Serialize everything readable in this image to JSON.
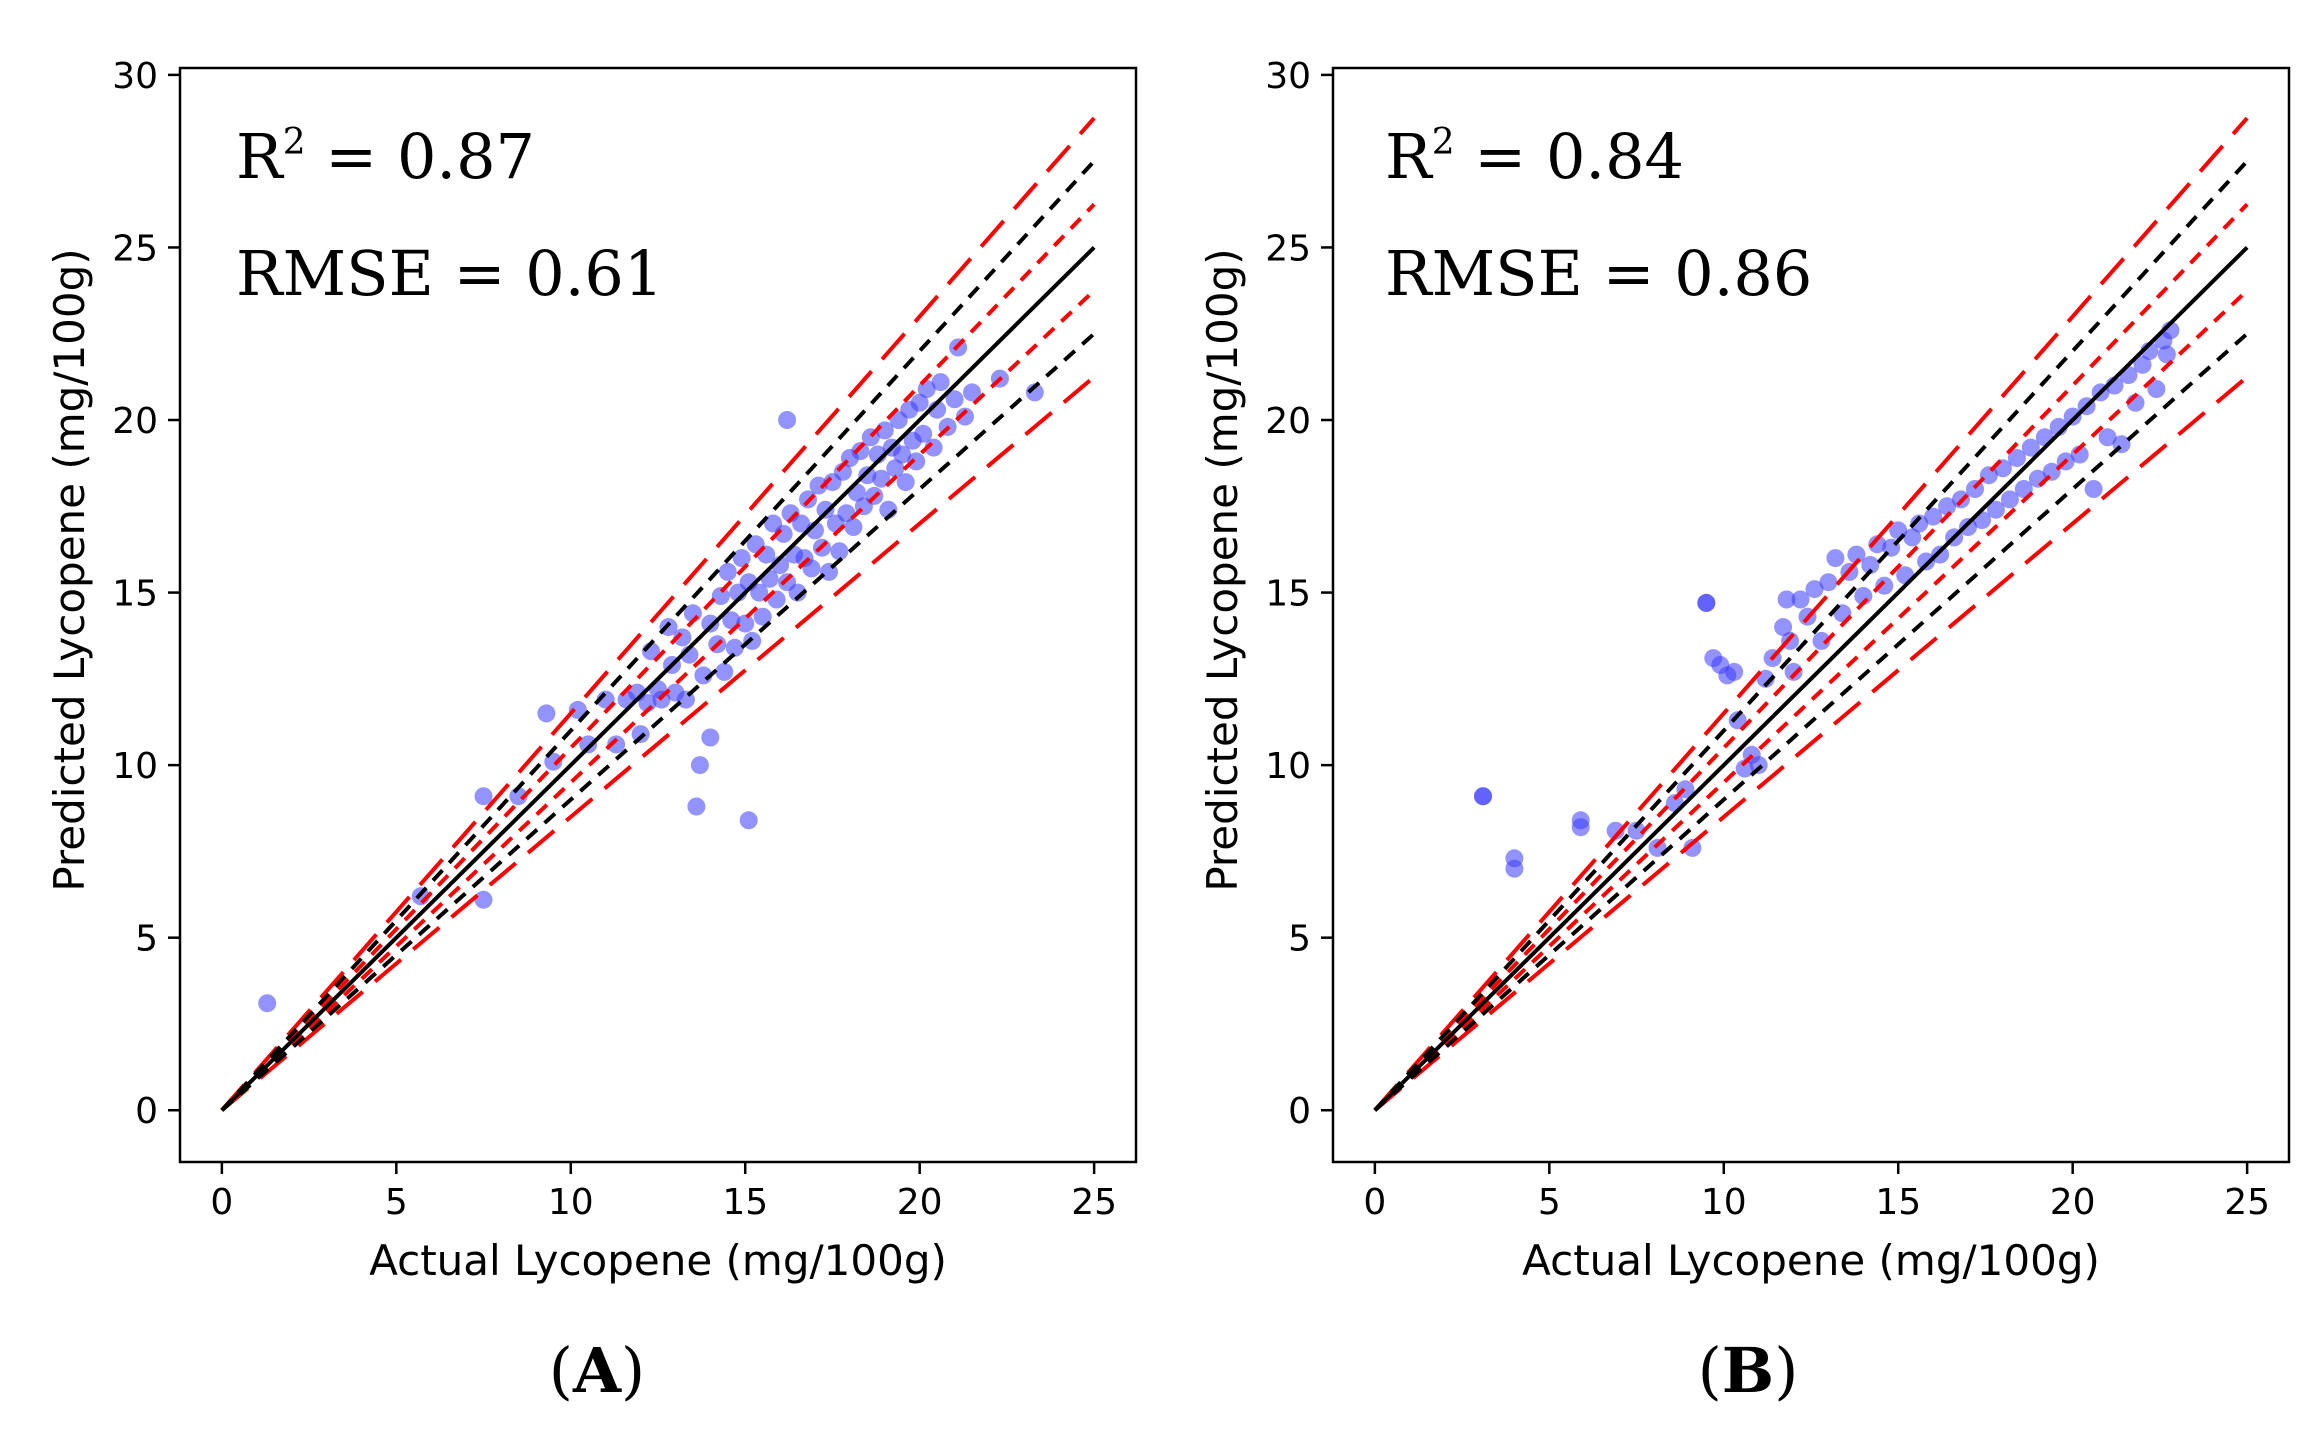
{
  "figure": {
    "panels": [
      {
        "id": "A",
        "panel_label": "(A)",
        "panel_label_letter": "A",
        "r2_text": "R² = 0.87",
        "r2_prefix": "R",
        "r2_sup": "2",
        "r2_value": " = 0.87",
        "rmse_text": "RMSE = 0.61"
      },
      {
        "id": "B",
        "panel_label": "(B)",
        "panel_label_letter": "B",
        "r2_text": "R² = 0.84",
        "r2_prefix": "R",
        "r2_sup": "2",
        "r2_value": " = 0.84",
        "rmse_text": "RMSE = 0.86"
      }
    ]
  },
  "colors": {
    "points": "#3a3aff",
    "identity_line": "#000000",
    "black_bands": "#000000",
    "red_bands": "#ff0000"
  },
  "chart_data": [
    {
      "type": "scatter",
      "title": "(A)",
      "xlabel": "Actual Lycopene (mg/100g)",
      "ylabel": "Predicted Lycopene (mg/100g)",
      "xlim": [
        -1.2,
        26.2
      ],
      "ylim": [
        -1.5,
        30.2
      ],
      "xticks": [
        0,
        5,
        10,
        15,
        20,
        25
      ],
      "yticks": [
        0,
        5,
        10,
        15,
        20,
        25,
        30
      ],
      "grid": false,
      "annotations": [
        "R² = 0.87",
        "RMSE = 0.61"
      ],
      "reference_lines": {
        "identity": {
          "slope": 1.0,
          "style": "solid",
          "color": "black"
        },
        "black_dashed_slopes": [
          0.9,
          1.1
        ],
        "red_dashed_slopes": [
          0.95,
          1.05
        ],
        "red_long_dashed_slopes": [
          0.85,
          1.15
        ],
        "x_range": [
          0,
          25
        ]
      },
      "series": [
        {
          "name": "predictions",
          "color": "blue",
          "alpha": 0.55,
          "points": [
            [
              1.3,
              3.1
            ],
            [
              5.7,
              6.2
            ],
            [
              7.5,
              9.1
            ],
            [
              7.5,
              6.1
            ],
            [
              8.5,
              9.1
            ],
            [
              9.3,
              11.5
            ],
            [
              9.5,
              10.1
            ],
            [
              10.2,
              11.6
            ],
            [
              10.5,
              10.6
            ],
            [
              11.0,
              11.9
            ],
            [
              11.3,
              10.6
            ],
            [
              11.6,
              11.9
            ],
            [
              11.9,
              12.1
            ],
            [
              12.0,
              10.9
            ],
            [
              12.2,
              11.8
            ],
            [
              12.3,
              13.3
            ],
            [
              12.5,
              12.2
            ],
            [
              12.6,
              11.9
            ],
            [
              12.8,
              14.0
            ],
            [
              12.9,
              12.9
            ],
            [
              13.0,
              12.1
            ],
            [
              13.2,
              13.7
            ],
            [
              13.3,
              11.9
            ],
            [
              13.4,
              13.2
            ],
            [
              13.5,
              14.4
            ],
            [
              13.6,
              8.8
            ],
            [
              13.7,
              10.0
            ],
            [
              13.8,
              12.6
            ],
            [
              14.0,
              10.8
            ],
            [
              14.0,
              14.1
            ],
            [
              14.2,
              13.5
            ],
            [
              14.3,
              14.9
            ],
            [
              14.4,
              12.7
            ],
            [
              14.5,
              15.6
            ],
            [
              14.6,
              14.2
            ],
            [
              14.7,
              13.4
            ],
            [
              14.8,
              15.0
            ],
            [
              14.9,
              16.0
            ],
            [
              15.0,
              14.1
            ],
            [
              15.1,
              8.4
            ],
            [
              15.1,
              15.3
            ],
            [
              15.2,
              13.6
            ],
            [
              15.3,
              16.4
            ],
            [
              15.4,
              15.0
            ],
            [
              15.5,
              14.3
            ],
            [
              15.6,
              16.1
            ],
            [
              15.7,
              15.4
            ],
            [
              15.8,
              17.0
            ],
            [
              15.9,
              14.8
            ],
            [
              16.0,
              15.8
            ],
            [
              16.1,
              16.7
            ],
            [
              16.2,
              20.0
            ],
            [
              16.2,
              15.3
            ],
            [
              16.3,
              17.3
            ],
            [
              16.4,
              16.1
            ],
            [
              16.5,
              15.0
            ],
            [
              16.6,
              17.0
            ],
            [
              16.7,
              16.0
            ],
            [
              16.8,
              17.7
            ],
            [
              16.9,
              15.7
            ],
            [
              17.0,
              16.8
            ],
            [
              17.1,
              18.1
            ],
            [
              17.2,
              16.3
            ],
            [
              17.3,
              17.4
            ],
            [
              17.4,
              15.6
            ],
            [
              17.5,
              18.2
            ],
            [
              17.6,
              17.0
            ],
            [
              17.7,
              16.2
            ],
            [
              17.8,
              18.5
            ],
            [
              17.9,
              17.3
            ],
            [
              18.0,
              18.9
            ],
            [
              18.1,
              16.9
            ],
            [
              18.2,
              17.9
            ],
            [
              18.3,
              19.1
            ],
            [
              18.4,
              17.5
            ],
            [
              18.5,
              18.4
            ],
            [
              18.6,
              19.5
            ],
            [
              18.7,
              17.8
            ],
            [
              18.8,
              19.0
            ],
            [
              18.9,
              18.3
            ],
            [
              19.0,
              19.7
            ],
            [
              19.1,
              17.4
            ],
            [
              19.2,
              19.2
            ],
            [
              19.3,
              18.6
            ],
            [
              19.4,
              20.0
            ],
            [
              19.5,
              19.0
            ],
            [
              19.6,
              18.2
            ],
            [
              19.7,
              20.3
            ],
            [
              19.8,
              19.4
            ],
            [
              19.9,
              18.8
            ],
            [
              20.0,
              20.5
            ],
            [
              20.1,
              19.6
            ],
            [
              20.2,
              20.9
            ],
            [
              20.4,
              19.2
            ],
            [
              20.5,
              20.3
            ],
            [
              20.6,
              21.1
            ],
            [
              20.8,
              19.8
            ],
            [
              21.0,
              20.6
            ],
            [
              21.1,
              22.1
            ],
            [
              21.3,
              20.1
            ],
            [
              21.5,
              20.8
            ],
            [
              22.3,
              21.2
            ],
            [
              23.3,
              20.8
            ]
          ]
        }
      ]
    },
    {
      "type": "scatter",
      "title": "(B)",
      "xlabel": "Actual Lycopene (mg/100g)",
      "ylabel": "Predicted Lycopene (mg/100g)",
      "xlim": [
        -1.2,
        26.2
      ],
      "ylim": [
        -1.5,
        30.2
      ],
      "xticks": [
        0,
        5,
        10,
        15,
        20,
        25
      ],
      "yticks": [
        0,
        5,
        10,
        15,
        20,
        25,
        30
      ],
      "grid": false,
      "annotations": [
        "R² = 0.84",
        "RMSE = 0.86"
      ],
      "reference_lines": {
        "identity": {
          "slope": 1.0,
          "style": "solid",
          "color": "black"
        },
        "black_dashed_slopes": [
          0.9,
          1.1
        ],
        "red_dashed_slopes": [
          0.95,
          1.05
        ],
        "red_long_dashed_slopes": [
          0.85,
          1.15
        ],
        "x_range": [
          0,
          25
        ]
      },
      "series": [
        {
          "name": "predictions",
          "color": "blue",
          "alpha": 0.55,
          "points": [
            [
              3.1,
              9.1
            ],
            [
              3.1,
              9.1
            ],
            [
              4.0,
              7.3
            ],
            [
              4.0,
              7.0
            ],
            [
              5.9,
              8.4
            ],
            [
              5.9,
              8.2
            ],
            [
              6.9,
              8.1
            ],
            [
              7.5,
              8.1
            ],
            [
              8.1,
              7.6
            ],
            [
              8.6,
              8.9
            ],
            [
              8.9,
              9.3
            ],
            [
              9.1,
              7.6
            ],
            [
              9.5,
              14.7
            ],
            [
              9.5,
              14.7
            ],
            [
              9.7,
              13.1
            ],
            [
              9.9,
              12.9
            ],
            [
              10.1,
              12.6
            ],
            [
              10.3,
              12.7
            ],
            [
              10.4,
              11.3
            ],
            [
              10.6,
              9.9
            ],
            [
              10.8,
              10.3
            ],
            [
              11.0,
              10.0
            ],
            [
              11.2,
              12.5
            ],
            [
              11.4,
              13.1
            ],
            [
              11.7,
              14.0
            ],
            [
              11.8,
              14.8
            ],
            [
              11.9,
              13.6
            ],
            [
              12.0,
              12.7
            ],
            [
              12.2,
              14.8
            ],
            [
              12.4,
              14.3
            ],
            [
              12.6,
              15.1
            ],
            [
              12.8,
              13.6
            ],
            [
              13.0,
              15.3
            ],
            [
              13.2,
              16.0
            ],
            [
              13.4,
              14.4
            ],
            [
              13.6,
              15.6
            ],
            [
              13.8,
              16.1
            ],
            [
              14.0,
              14.9
            ],
            [
              14.2,
              15.8
            ],
            [
              14.4,
              16.4
            ],
            [
              14.6,
              15.2
            ],
            [
              14.8,
              16.3
            ],
            [
              15.0,
              16.8
            ],
            [
              15.2,
              15.5
            ],
            [
              15.4,
              16.6
            ],
            [
              15.6,
              17.0
            ],
            [
              15.8,
              15.9
            ],
            [
              16.0,
              17.2
            ],
            [
              16.2,
              16.1
            ],
            [
              16.4,
              17.5
            ],
            [
              16.6,
              16.6
            ],
            [
              16.8,
              17.7
            ],
            [
              17.0,
              16.9
            ],
            [
              17.2,
              18.0
            ],
            [
              17.4,
              17.1
            ],
            [
              17.6,
              18.4
            ],
            [
              17.8,
              17.4
            ],
            [
              18.0,
              18.6
            ],
            [
              18.2,
              17.7
            ],
            [
              18.4,
              18.9
            ],
            [
              18.6,
              18.0
            ],
            [
              18.8,
              19.2
            ],
            [
              19.0,
              18.3
            ],
            [
              19.2,
              19.5
            ],
            [
              19.4,
              18.5
            ],
            [
              19.6,
              19.8
            ],
            [
              19.8,
              18.8
            ],
            [
              20.0,
              20.1
            ],
            [
              20.2,
              19.0
            ],
            [
              20.4,
              20.4
            ],
            [
              20.6,
              18.0
            ],
            [
              20.8,
              20.8
            ],
            [
              21.0,
              19.5
            ],
            [
              21.2,
              21.0
            ],
            [
              21.4,
              19.3
            ],
            [
              21.6,
              21.3
            ],
            [
              21.8,
              20.5
            ],
            [
              22.0,
              21.6
            ],
            [
              22.2,
              22.0
            ],
            [
              22.4,
              20.9
            ],
            [
              22.6,
              22.3
            ],
            [
              22.8,
              22.6
            ],
            [
              22.7,
              21.9
            ]
          ]
        }
      ]
    }
  ]
}
